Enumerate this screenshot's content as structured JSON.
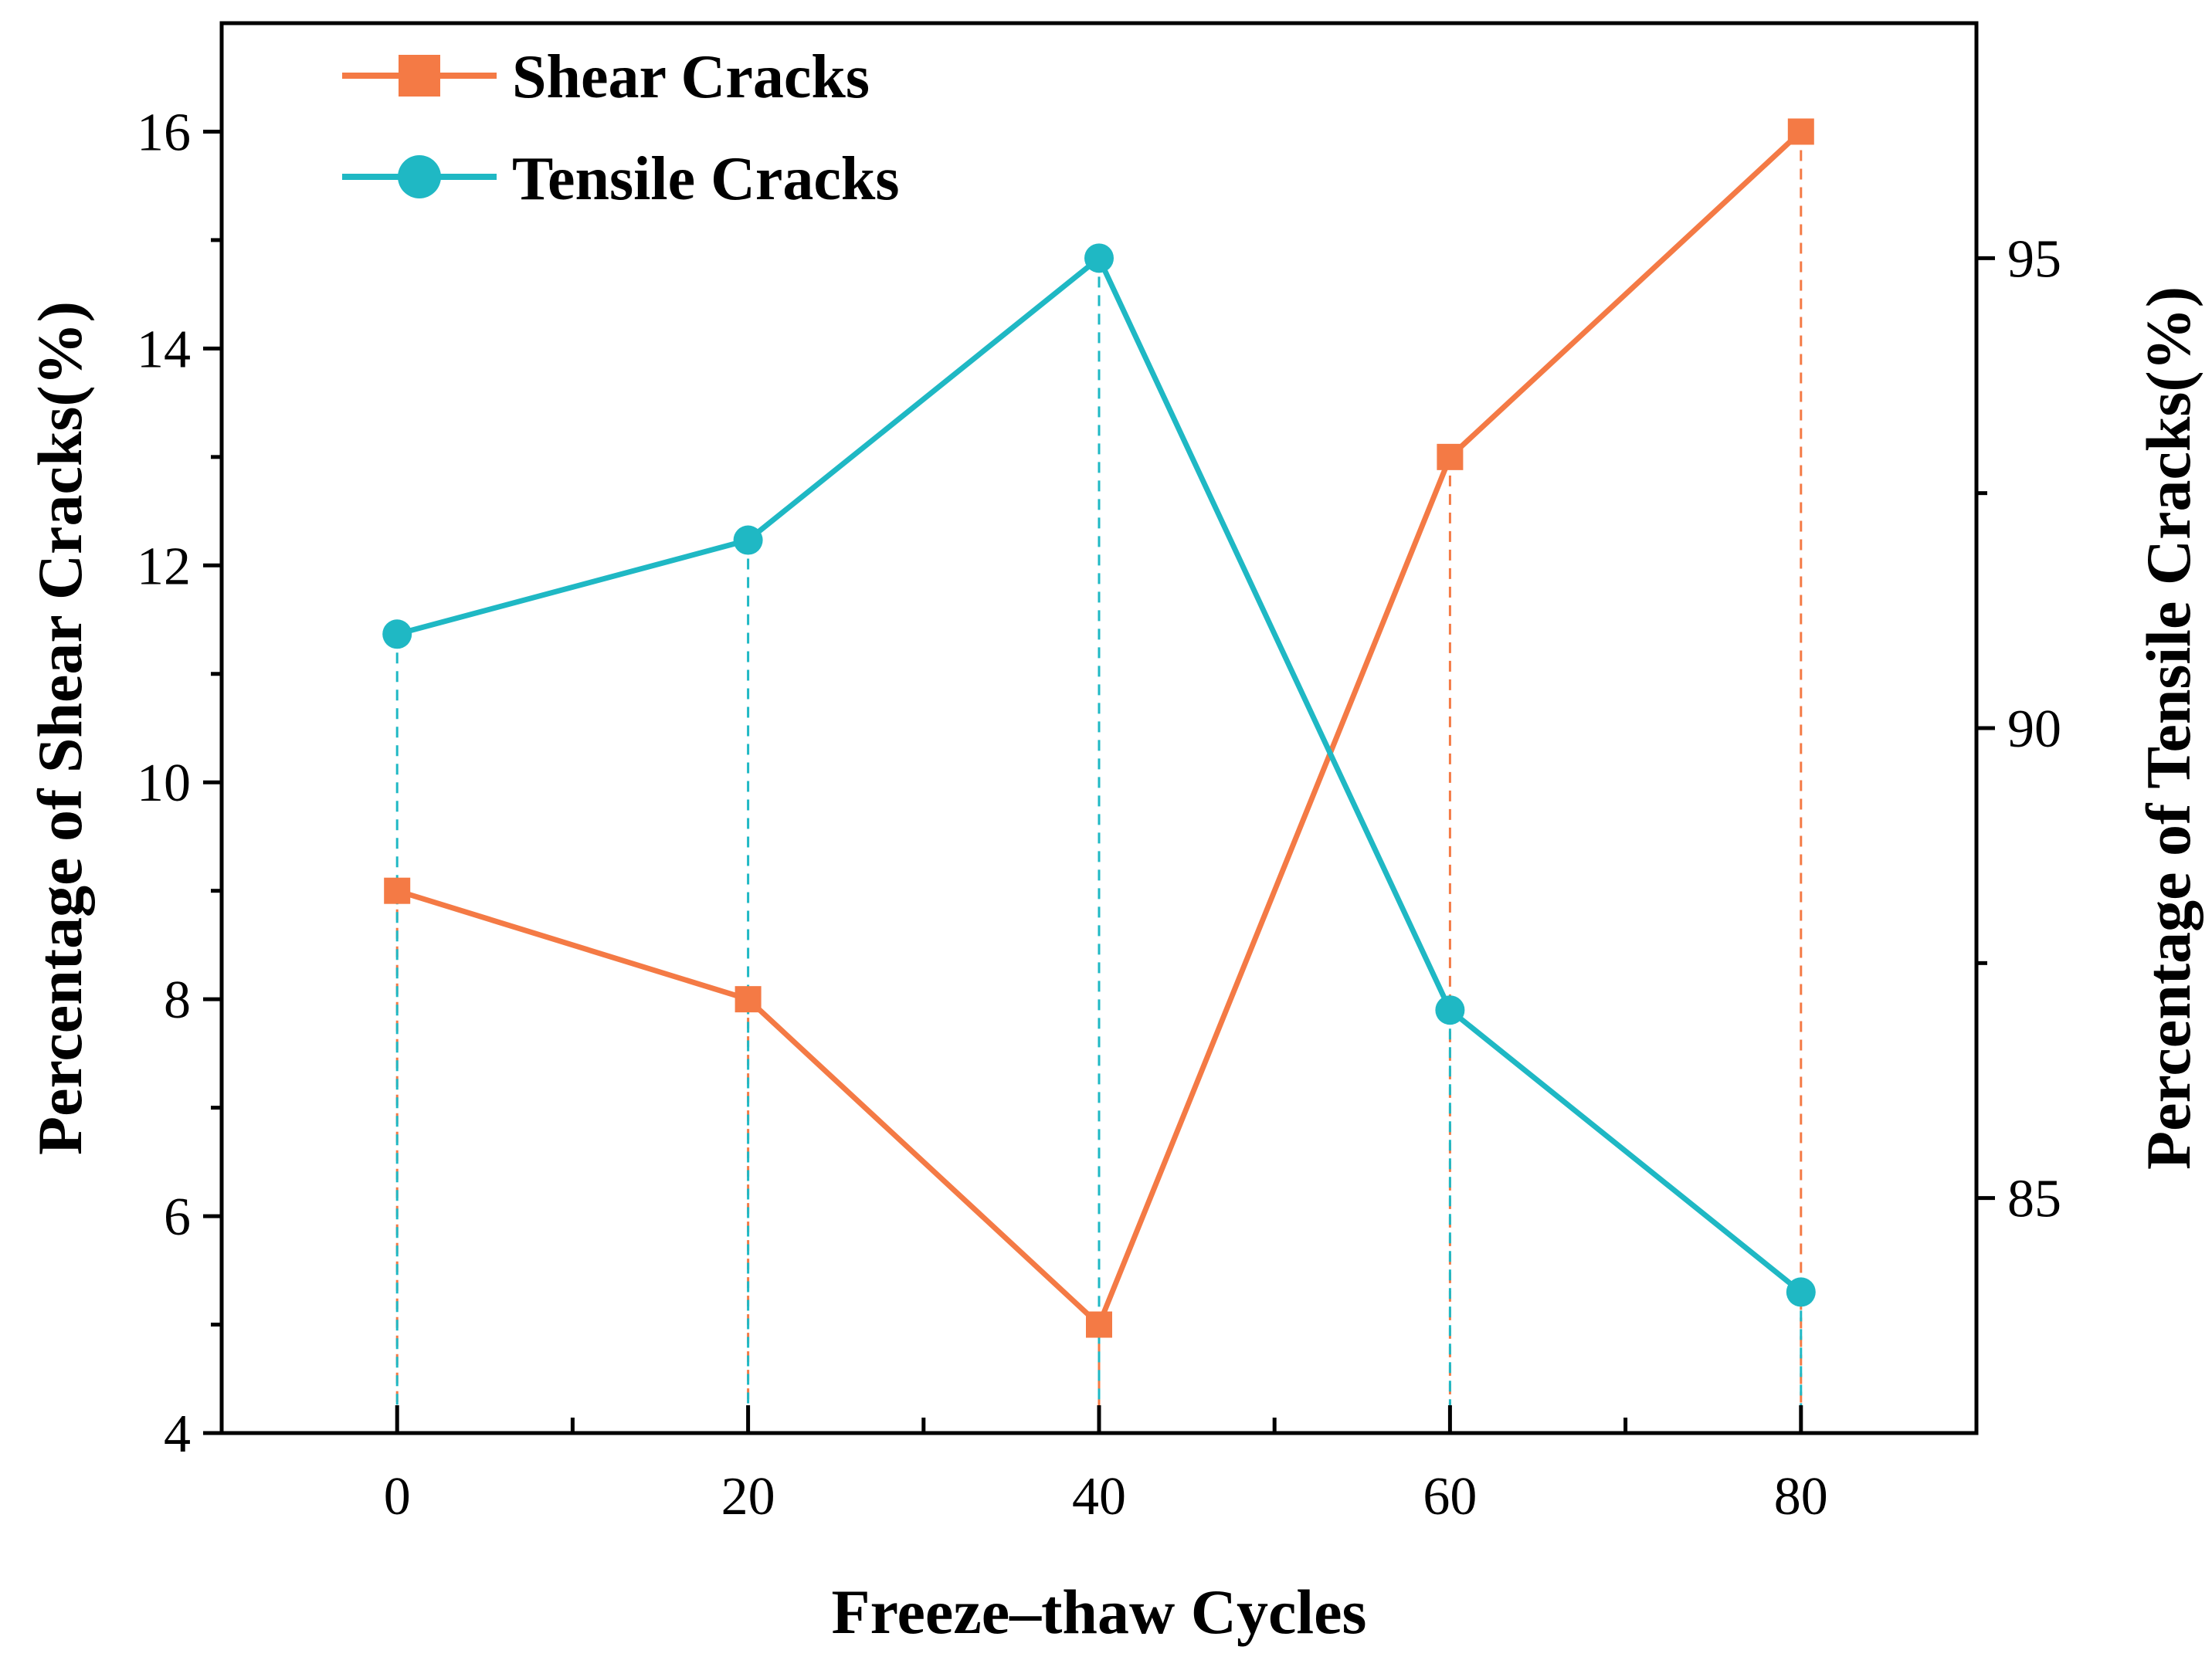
{
  "chart_data": {
    "type": "line",
    "xlabel": "Freeze–thaw Cycles",
    "ylabel_left": "Percentage of Shear Cracks(%)",
    "ylabel_right": "Percentage of Tensile Cracks(%)",
    "x": [
      0,
      20,
      40,
      60,
      80
    ],
    "xlim": [
      -10,
      90
    ],
    "xticks": [
      0,
      20,
      40,
      60,
      80
    ],
    "xticks_minor": [
      10,
      30,
      50,
      70
    ],
    "ylim_left": [
      4,
      17
    ],
    "yticks_left": [
      4,
      6,
      8,
      10,
      12,
      14,
      16
    ],
    "yticks_left_minor": [
      5,
      7,
      9,
      11,
      13,
      15
    ],
    "ylim_right": [
      82.5,
      97.5
    ],
    "yticks_right": [
      85,
      90,
      95
    ],
    "yticks_right_minor": [
      87.5,
      92.5
    ],
    "legend_position": "top-left",
    "series": [
      {
        "name": "Shear Cracks",
        "axis": "left",
        "marker": "square",
        "color": "#F47A45",
        "values": [
          9,
          8,
          5,
          13,
          16
        ]
      },
      {
        "name": "Tensile Cracks",
        "axis": "right",
        "marker": "circle",
        "color": "#1FB8C4",
        "values": [
          91.0,
          92.0,
          95.0,
          87.0,
          84.0
        ]
      }
    ]
  }
}
